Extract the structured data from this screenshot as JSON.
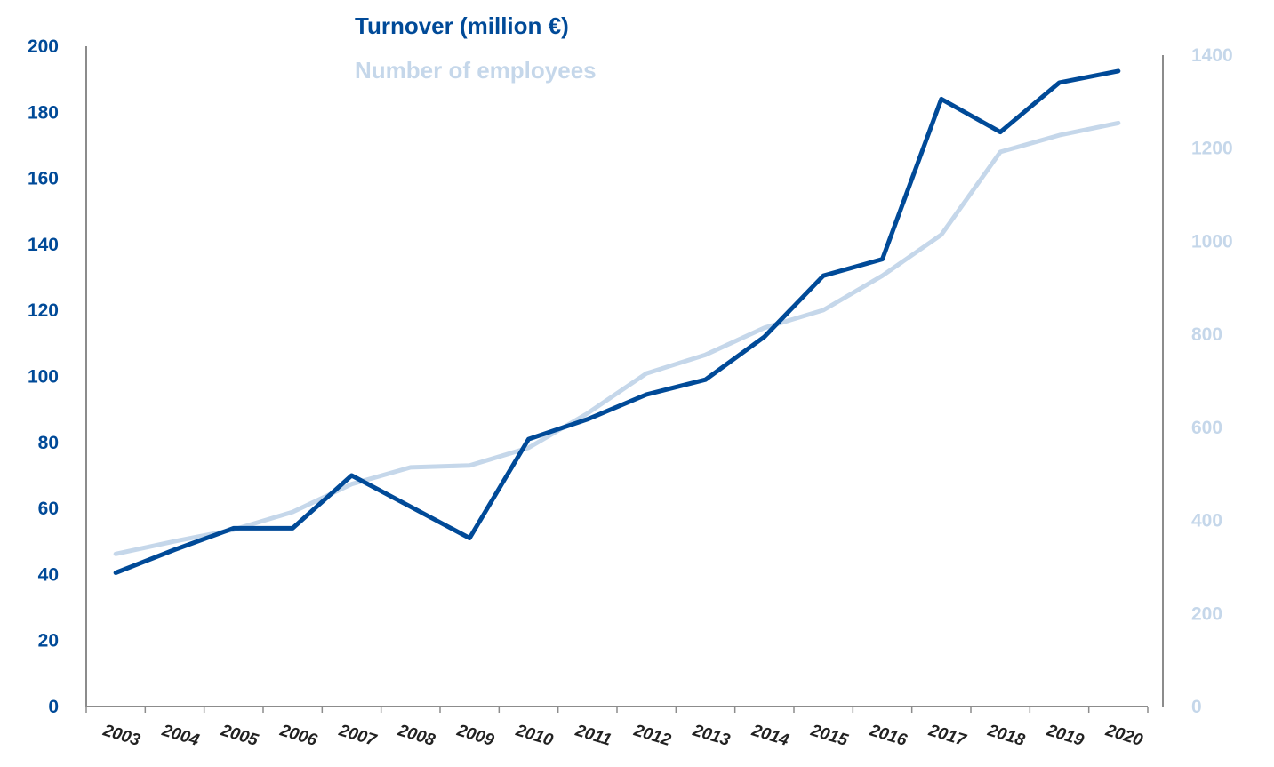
{
  "chart_data": {
    "type": "line",
    "title": "",
    "xlabel": "",
    "ylabel": "",
    "y2label": "",
    "categories": [
      "2003",
      "2004",
      "2005",
      "2006",
      "2007",
      "2008",
      "2009",
      "2010",
      "2011",
      "2012",
      "2013",
      "2014",
      "2015",
      "2016",
      "2017",
      "2018",
      "2019",
      "2020"
    ],
    "ylim": [
      0,
      200
    ],
    "y_ticks": [
      0,
      20,
      40,
      60,
      80,
      100,
      120,
      140,
      160,
      180,
      200
    ],
    "y2lim": [
      0,
      1400
    ],
    "y2_ticks": [
      0,
      200,
      400,
      600,
      800,
      1000,
      1200,
      1400
    ],
    "grid": false,
    "legend_placement": "top-center",
    "series": [
      {
        "name": "Turnover (million €)",
        "axis": "left",
        "color": "#004a98",
        "values": [
          40.5,
          47.5,
          54,
          54,
          70,
          60.5,
          51,
          81,
          87,
          94.5,
          99,
          112,
          130.5,
          135.5,
          184,
          174,
          189,
          192.5
        ]
      },
      {
        "name": "Number of employees",
        "axis": "right",
        "color": "#c5d7ea",
        "values": [
          328,
          355,
          380,
          418,
          478,
          514,
          518,
          556,
          630,
          716,
          756,
          814,
          852,
          926,
          1014,
          1192,
          1228,
          1254
        ]
      }
    ],
    "colors": {
      "left_axis_text": "#004a98",
      "right_axis_text": "#c5d7ea",
      "x_axis_text": "#222222",
      "axis_line": "#8c8c8c"
    }
  }
}
